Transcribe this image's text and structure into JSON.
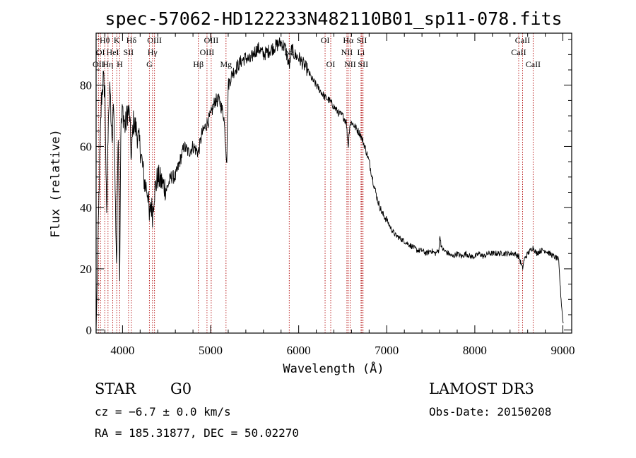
{
  "colors": {
    "ink": "#000000",
    "line_marker": "#b00000",
    "background": "#ffffff"
  },
  "chart_data": {
    "type": "line",
    "title": "spec-57062-HD122233N482110B01_sp11-078.fits",
    "xlabel": "Wavelength (Å)",
    "ylabel": "Flux (relative)",
    "xlim": [
      3700,
      9100
    ],
    "ylim": [
      -1,
      97
    ],
    "xticks": [
      4000,
      5000,
      6000,
      7000,
      8000,
      9000
    ],
    "yticks": [
      0,
      20,
      40,
      60,
      80
    ],
    "series": [
      {
        "name": "flux",
        "x": [
          3700,
          3720,
          3740,
          3760,
          3780,
          3800,
          3820,
          3840,
          3860,
          3880,
          3900,
          3920,
          3934,
          3950,
          3968,
          3980,
          4000,
          4030,
          4060,
          4080,
          4101,
          4120,
          4150,
          4200,
          4250,
          4290,
          4305,
          4320,
          4340,
          4360,
          4400,
          4450,
          4500,
          4550,
          4600,
          4650,
          4700,
          4750,
          4800,
          4861,
          4900,
          4950,
          5000,
          5050,
          5100,
          5150,
          5172,
          5183,
          5200,
          5250,
          5300,
          5350,
          5400,
          5450,
          5500,
          5550,
          5600,
          5650,
          5700,
          5750,
          5800,
          5850,
          5893,
          5920,
          5950,
          6000,
          6050,
          6100,
          6150,
          6200,
          6250,
          6300,
          6350,
          6400,
          6450,
          6500,
          6540,
          6563,
          6580,
          6600,
          6650,
          6700,
          6750,
          6800,
          6850,
          6900,
          6950,
          7000,
          7050,
          7100,
          7150,
          7200,
          7250,
          7300,
          7350,
          7400,
          7450,
          7500,
          7550,
          7590,
          7605,
          7620,
          7650,
          7700,
          7750,
          7800,
          7850,
          7900,
          7950,
          8000,
          8050,
          8100,
          8150,
          8200,
          8250,
          8300,
          8350,
          8400,
          8450,
          8500,
          8542,
          8560,
          8600,
          8662,
          8700,
          8750,
          8800,
          8850,
          8900,
          8950,
          8980,
          9000,
          9005
        ],
        "y": [
          0,
          25,
          55,
          75,
          82,
          78,
          35,
          72,
          78,
          60,
          75,
          40,
          20,
          70,
          18,
          65,
          72,
          66,
          72,
          70,
          55,
          68,
          66,
          60,
          48,
          45,
          35,
          42,
          38,
          45,
          50,
          48,
          46,
          50,
          50,
          55,
          60,
          58,
          60,
          58,
          64,
          67,
          70,
          75,
          75,
          70,
          60,
          55,
          80,
          84,
          86,
          88,
          89,
          88,
          91,
          92,
          90,
          91,
          92,
          93,
          94,
          92,
          86,
          92,
          90,
          89,
          87,
          85,
          82,
          80,
          78,
          76,
          75,
          73,
          71,
          70,
          68,
          60,
          67,
          68,
          66,
          64,
          60,
          55,
          48,
          42,
          38,
          36,
          33,
          31,
          30,
          29,
          28,
          27,
          26,
          26,
          25,
          26,
          25,
          26,
          31,
          27,
          26,
          25,
          24,
          25,
          24,
          25,
          24,
          24,
          25,
          24,
          25,
          25,
          25,
          25,
          25,
          25,
          25,
          24,
          20,
          23,
          25,
          27,
          25,
          26,
          26,
          25,
          24,
          23,
          10,
          3,
          2
        ]
      }
    ],
    "line_markers": [
      {
        "label": "Hθ",
        "x": 3798,
        "row": 0
      },
      {
        "label": "OI",
        "x": 3750,
        "row": 1
      },
      {
        "label": "OII",
        "x": 3727,
        "row": 2
      },
      {
        "label": "K",
        "x": 3934,
        "row": 0
      },
      {
        "label": "HeI",
        "x": 3889,
        "row": 1
      },
      {
        "label": "Hη",
        "x": 3835,
        "row": 2
      },
      {
        "label": "H",
        "x": 3968,
        "row": 2
      },
      {
        "label": "SII",
        "x": 4068,
        "row": 1
      },
      {
        "label": "Hδ",
        "x": 4101,
        "row": 0
      },
      {
        "label": "OIII",
        "x": 4363,
        "row": 0
      },
      {
        "label": "Hγ",
        "x": 4340,
        "row": 1
      },
      {
        "label": "G",
        "x": 4305,
        "row": 2
      },
      {
        "label": "Hβ",
        "x": 4861,
        "row": 2
      },
      {
        "label": "OIII",
        "x": 5007,
        "row": 0
      },
      {
        "label": "OIII",
        "x": 4959,
        "row": 1
      },
      {
        "label": "Mg",
        "x": 5175,
        "row": 2
      },
      {
        "label": "Na",
        "x": 5893,
        "row": 1
      },
      {
        "label": "OI",
        "x": 6300,
        "row": 0
      },
      {
        "label": "OI",
        "x": 6364,
        "row": 2
      },
      {
        "label": "Hα",
        "x": 6563,
        "row": 0
      },
      {
        "label": "NII",
        "x": 6548,
        "row": 1
      },
      {
        "label": "NII",
        "x": 6584,
        "row": 2
      },
      {
        "label": "SII",
        "x": 6717,
        "row": 0
      },
      {
        "label": "Li",
        "x": 6708,
        "row": 1
      },
      {
        "label": "SII",
        "x": 6731,
        "row": 2
      },
      {
        "label": "CaII",
        "x": 8542,
        "row": 0
      },
      {
        "label": "CaII",
        "x": 8498,
        "row": 1
      },
      {
        "label": "CaII",
        "x": 8662,
        "row": 2
      }
    ]
  },
  "info": {
    "object_class": "STAR",
    "subclass": "G0",
    "survey": "LAMOST DR3",
    "redshift": "cz = −6.7 ± 0.0 km/s",
    "obs_date": "Obs-Date: 20150208",
    "coords": "RA = 185.31877, DEC =  50.02270"
  }
}
